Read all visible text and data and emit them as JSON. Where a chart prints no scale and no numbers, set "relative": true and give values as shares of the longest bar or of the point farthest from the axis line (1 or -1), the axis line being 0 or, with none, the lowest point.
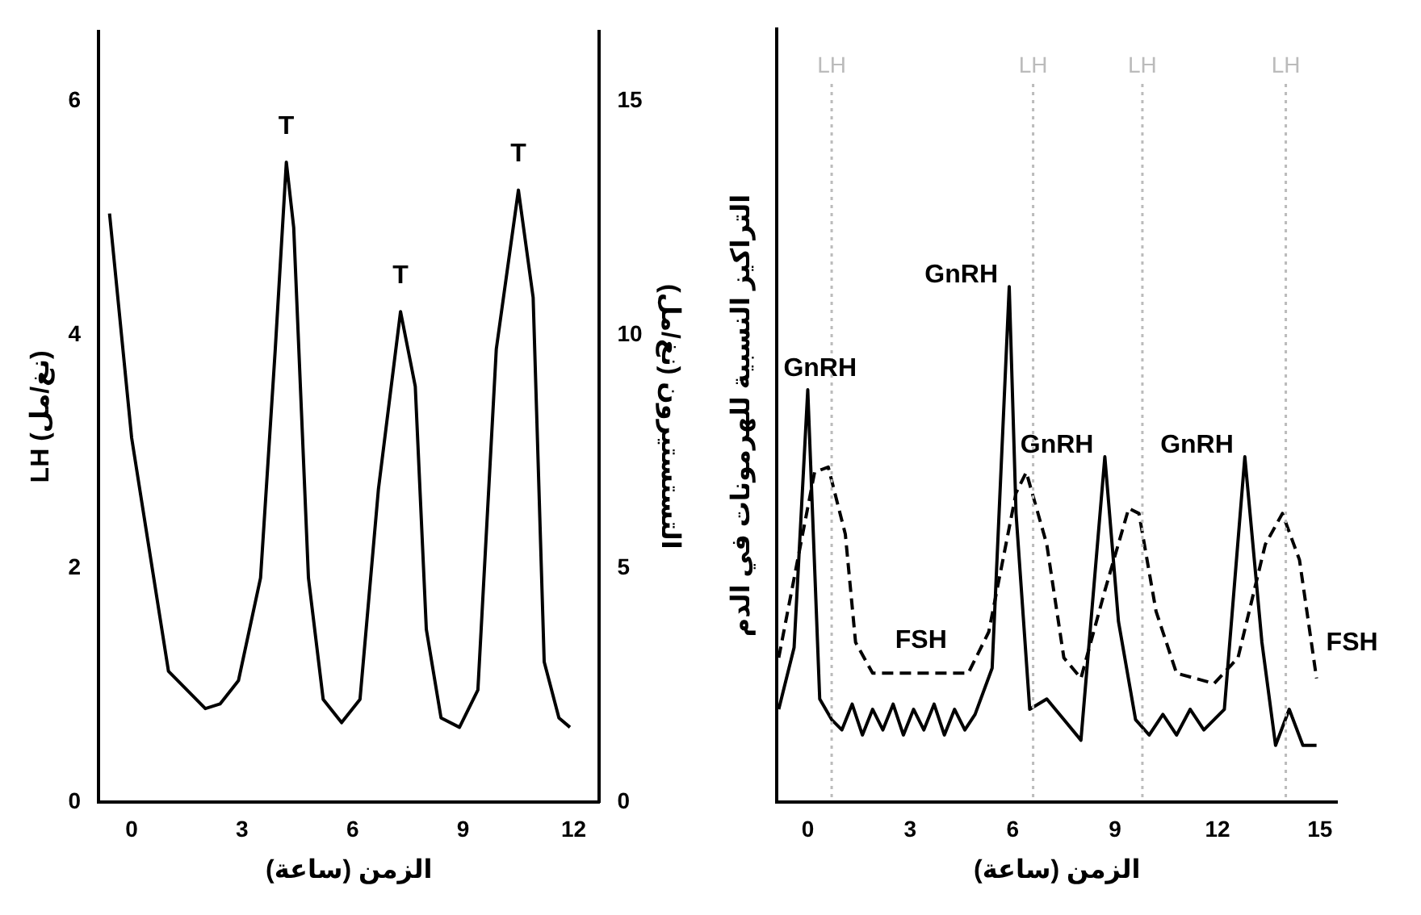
{
  "chart_data": [
    {
      "type": "line",
      "xlabel": "الزمن (ساعة)",
      "ylabel": "LH (نغ/مل)",
      "y2label": "التستستيرون (نغ/مل)",
      "x": [
        -0.6,
        0,
        1,
        2,
        2.4,
        2.9,
        3.5,
        3.9,
        4.2,
        4.4,
        4.8,
        5.2,
        5.7,
        6.2,
        6.7,
        7.3,
        7.7,
        8.0,
        8.4,
        8.9,
        9.4,
        9.9,
        10.5,
        10.9,
        11.2,
        11.6,
        11.9
      ],
      "series": [
        {
          "color": "#000000",
          "axis": "y2",
          "values": [
            12.6,
            7.8,
            2.8,
            2.0,
            2.1,
            2.6,
            4.8,
            9.7,
            13.7,
            12.3,
            4.8,
            2.2,
            1.7,
            2.2,
            6.7,
            10.5,
            8.9,
            3.7,
            1.8,
            1.6,
            2.4,
            9.7,
            13.1,
            10.8,
            3.0,
            1.8,
            1.6
          ]
        }
      ],
      "xlim": [
        -0.9,
        12.7
      ],
      "xticks": [
        0,
        3,
        6,
        9,
        12
      ],
      "ylim": [
        0,
        6.6
      ],
      "yticks": [
        0,
        2,
        4,
        6
      ],
      "y2lim": [
        0,
        16.5
      ],
      "y2ticks": [
        0,
        5,
        10,
        15
      ],
      "grid": false,
      "legend": false,
      "marker": "none",
      "line_style": "solid",
      "annotations": [
        "T",
        "T",
        "T"
      ]
    },
    {
      "type": "line",
      "relative": true,
      "tick_labels": "x",
      "xlabel": "الزمن (ساعة)",
      "ylabel": "التراكيز النسبية للهرمونات في الدم",
      "series": [
        {
          "name": "GnRH",
          "color": "#000000",
          "line_style": "solid",
          "x": [
            -0.85,
            -0.4,
            0,
            0.35,
            0.7,
            1.0,
            1.3,
            1.6,
            1.9,
            2.2,
            2.5,
            2.8,
            3.1,
            3.4,
            3.7,
            4.0,
            4.3,
            4.6,
            4.9,
            5.4,
            5.9,
            6.1,
            6.5,
            7.0,
            7.5,
            8.0,
            8.7,
            9.1,
            9.6,
            10.0,
            10.4,
            10.8,
            11.2,
            11.6,
            12.2,
            12.8,
            13.3,
            13.7,
            14.1,
            14.5,
            14.9
          ],
          "values": [
            0.18,
            0.3,
            0.8,
            0.2,
            0.16,
            0.14,
            0.19,
            0.13,
            0.18,
            0.14,
            0.19,
            0.13,
            0.18,
            0.14,
            0.19,
            0.13,
            0.18,
            0.14,
            0.17,
            0.26,
            1.0,
            0.56,
            0.18,
            0.2,
            0.16,
            0.12,
            0.67,
            0.35,
            0.16,
            0.13,
            0.17,
            0.13,
            0.18,
            0.14,
            0.18,
            0.67,
            0.31,
            0.11,
            0.18,
            0.11,
            0.11
          ]
        },
        {
          "name": "FSH",
          "color": "#000000",
          "line_style": "dashed",
          "x": [
            -0.85,
            0.2,
            0.6,
            1.1,
            1.4,
            1.9,
            3.0,
            4.7,
            5.3,
            6.1,
            6.4,
            7.0,
            7.5,
            8.0,
            8.7,
            9.4,
            9.7,
            10.2,
            10.8,
            11.9,
            12.6,
            13.4,
            13.9,
            14.4,
            14.9
          ],
          "values": [
            0.28,
            0.64,
            0.65,
            0.52,
            0.31,
            0.25,
            0.25,
            0.25,
            0.33,
            0.6,
            0.64,
            0.5,
            0.28,
            0.24,
            0.41,
            0.57,
            0.56,
            0.37,
            0.25,
            0.23,
            0.28,
            0.5,
            0.56,
            0.47,
            0.24
          ]
        }
      ],
      "xlim": [
        -0.9,
        15.5
      ],
      "xticks": [
        0,
        3,
        6,
        9,
        12,
        15
      ],
      "grid": false,
      "legend": false,
      "marker": "none",
      "ref_lines": [
        {
          "axis": "x",
          "value": 0.7,
          "label": "LH",
          "color": "#bbbbbb",
          "line_style": "dotted"
        },
        {
          "axis": "x",
          "value": 6.6,
          "label": "LH",
          "color": "#bbbbbb",
          "line_style": "dotted"
        },
        {
          "axis": "x",
          "value": 9.8,
          "label": "LH",
          "color": "#bbbbbb",
          "line_style": "dotted"
        },
        {
          "axis": "x",
          "value": 14.0,
          "label": "LH",
          "color": "#bbbbbb",
          "line_style": "dotted"
        }
      ]
    }
  ]
}
